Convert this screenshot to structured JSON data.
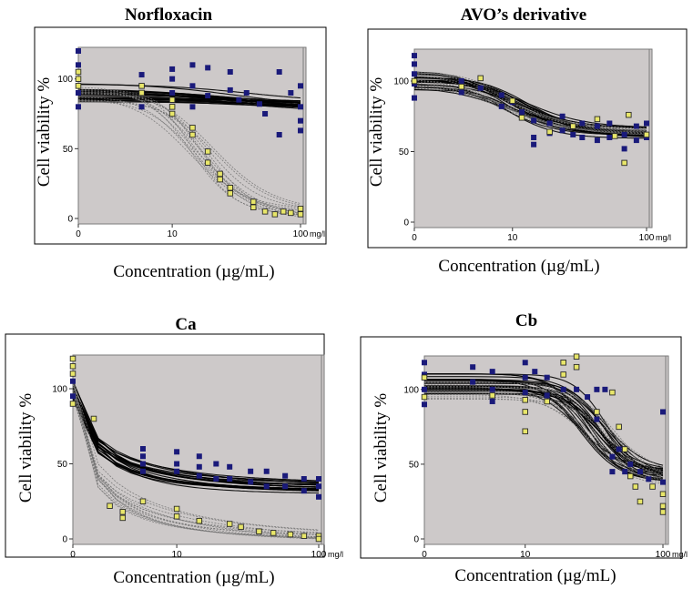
{
  "colors": {
    "plot_bg": "#cdc9c9",
    "frame": "#7a7a7a",
    "blue_marker": "#1a1a7a",
    "yellow_marker": "#e8e66a",
    "yellow_edge": "#2a2a2a",
    "black_curve": "#000000",
    "grey_curve": "#707070"
  },
  "chart_data": [
    {
      "type": "scatter",
      "title": "Norfloxacin",
      "xlabel": "Concentration (µg/mL)",
      "ylabel": "Cell viability  %",
      "x_ticks": [
        "0",
        "10",
        "100"
      ],
      "x_unit": "mg/l",
      "y_ticks": [
        "0",
        "50",
        "100"
      ],
      "xlim": [
        0,
        100
      ],
      "ylim": [
        0,
        120
      ],
      "series": [
        {
          "name": "blue",
          "style": "square",
          "fit_top": 90,
          "fit_bottom": 80,
          "ec50": 40,
          "hill": 1.2,
          "points": [
            [
              0,
              120
            ],
            [
              0,
              110
            ],
            [
              0,
              100
            ],
            [
              0,
              90
            ],
            [
              0,
              80
            ],
            [
              5,
              103
            ],
            [
              5,
              90
            ],
            [
              5,
              80
            ],
            [
              10,
              107
            ],
            [
              10,
              100
            ],
            [
              10,
              90
            ],
            [
              15,
              110
            ],
            [
              15,
              95
            ],
            [
              15,
              80
            ],
            [
              20,
              108
            ],
            [
              20,
              88
            ],
            [
              30,
              105
            ],
            [
              30,
              92
            ],
            [
              35,
              85
            ],
            [
              40,
              90
            ],
            [
              50,
              82
            ],
            [
              55,
              75
            ],
            [
              70,
              105
            ],
            [
              70,
              60
            ],
            [
              85,
              90
            ],
            [
              100,
              95
            ],
            [
              100,
              80
            ],
            [
              100,
              70
            ],
            [
              100,
              63
            ]
          ]
        },
        {
          "name": "yellow",
          "style": "ring",
          "fit_top": 90,
          "fit_bottom": 3,
          "ec50": 20,
          "hill": 2.2,
          "points": [
            [
              0,
              105
            ],
            [
              0,
              100
            ],
            [
              0,
              95
            ],
            [
              5,
              95
            ],
            [
              5,
              90
            ],
            [
              10,
              85
            ],
            [
              10,
              80
            ],
            [
              10,
              75
            ],
            [
              15,
              65
            ],
            [
              15,
              60
            ],
            [
              20,
              48
            ],
            [
              20,
              40
            ],
            [
              25,
              32
            ],
            [
              25,
              28
            ],
            [
              30,
              22
            ],
            [
              30,
              18
            ],
            [
              45,
              12
            ],
            [
              45,
              8
            ],
            [
              55,
              5
            ],
            [
              65,
              3
            ],
            [
              75,
              5
            ],
            [
              85,
              4
            ],
            [
              100,
              7
            ],
            [
              100,
              3
            ]
          ]
        }
      ]
    },
    {
      "type": "scatter",
      "title": "AVO’s derivative",
      "xlabel": "Concentration (µg/mL)",
      "ylabel": "Cell viability  %",
      "x_ticks": [
        "0",
        "10",
        "100"
      ],
      "x_unit": "mg/l",
      "y_ticks": [
        "0",
        "50",
        "100"
      ],
      "xlim": [
        0,
        100
      ],
      "ylim": [
        0,
        120
      ],
      "series": [
        {
          "name": "blue",
          "style": "square",
          "fit_top": 100,
          "fit_bottom": 63,
          "ec50": 12,
          "hill": 2.0,
          "points": [
            [
              0,
              118
            ],
            [
              0,
              112
            ],
            [
              0,
              105
            ],
            [
              0,
              98
            ],
            [
              0,
              88
            ],
            [
              3,
              100
            ],
            [
              3,
              92
            ],
            [
              5,
              95
            ],
            [
              8,
              90
            ],
            [
              8,
              82
            ],
            [
              10,
              85
            ],
            [
              12,
              78
            ],
            [
              15,
              72
            ],
            [
              15,
              60
            ],
            [
              15,
              55
            ],
            [
              20,
              70
            ],
            [
              20,
              63
            ],
            [
              25,
              75
            ],
            [
              25,
              65
            ],
            [
              30,
              62
            ],
            [
              35,
              70
            ],
            [
              35,
              60
            ],
            [
              45,
              68
            ],
            [
              45,
              58
            ],
            [
              55,
              70
            ],
            [
              55,
              60
            ],
            [
              70,
              62
            ],
            [
              70,
              52
            ],
            [
              85,
              68
            ],
            [
              85,
              58
            ],
            [
              100,
              70
            ],
            [
              100,
              60
            ]
          ]
        },
        {
          "name": "yellow",
          "style": "ring",
          "fit_top": 100,
          "fit_bottom": 63,
          "ec50": 10,
          "hill": 1.8,
          "points": [
            [
              0,
              100
            ],
            [
              3,
              96
            ],
            [
              5,
              102
            ],
            [
              10,
              86
            ],
            [
              12,
              74
            ],
            [
              20,
              64
            ],
            [
              30,
              68
            ],
            [
              45,
              73
            ],
            [
              60,
              61
            ],
            [
              75,
              76
            ],
            [
              70,
              42
            ],
            [
              100,
              62
            ]
          ]
        }
      ]
    },
    {
      "type": "scatter",
      "title": "Ca",
      "xlabel": "Concentration (µg/mL)",
      "ylabel": "Cell viability  %",
      "x_ticks": [
        "0",
        "10",
        "100"
      ],
      "x_unit": "mg/l",
      "y_ticks": [
        "0",
        "50",
        "100"
      ],
      "xlim": [
        0,
        100
      ],
      "ylim": [
        0,
        120
      ],
      "series": [
        {
          "name": "blue",
          "style": "square",
          "fit_top": 100,
          "fit_bottom": 34,
          "ec50": 1.0,
          "hill": 0.9,
          "points": [
            [
              0,
              115
            ],
            [
              0,
              105
            ],
            [
              0,
              95
            ],
            [
              5,
              60
            ],
            [
              5,
              55
            ],
            [
              5,
              50
            ],
            [
              5,
              45
            ],
            [
              10,
              58
            ],
            [
              10,
              50
            ],
            [
              10,
              45
            ],
            [
              15,
              55
            ],
            [
              15,
              48
            ],
            [
              15,
              42
            ],
            [
              20,
              50
            ],
            [
              20,
              40
            ],
            [
              25,
              48
            ],
            [
              25,
              40
            ],
            [
              35,
              45
            ],
            [
              35,
              38
            ],
            [
              45,
              45
            ],
            [
              45,
              35
            ],
            [
              60,
              42
            ],
            [
              60,
              35
            ],
            [
              80,
              40
            ],
            [
              80,
              32
            ],
            [
              100,
              40
            ],
            [
              100,
              35
            ],
            [
              100,
              28
            ]
          ]
        },
        {
          "name": "yellow",
          "style": "ring",
          "fit_top": 100,
          "fit_bottom": 0,
          "ec50": 0.8,
          "hill": 0.8,
          "points": [
            [
              0,
              120
            ],
            [
              0,
              115
            ],
            [
              0,
              110
            ],
            [
              0,
              90
            ],
            [
              1,
              80
            ],
            [
              2,
              22
            ],
            [
              3,
              18
            ],
            [
              3,
              14
            ],
            [
              5,
              25
            ],
            [
              10,
              20
            ],
            [
              10,
              15
            ],
            [
              15,
              12
            ],
            [
              25,
              10
            ],
            [
              30,
              8
            ],
            [
              40,
              5
            ],
            [
              50,
              4
            ],
            [
              65,
              3
            ],
            [
              80,
              2
            ],
            [
              100,
              2
            ],
            [
              100,
              0
            ]
          ]
        }
      ]
    },
    {
      "type": "scatter",
      "title": "Cb",
      "xlabel": "Concentration (µg/mL)",
      "ylabel": "Cell viability  %",
      "x_ticks": [
        "0",
        "10",
        "100"
      ],
      "x_unit": "mg/l",
      "y_ticks": [
        "0",
        "50",
        "100"
      ],
      "xlim": [
        0,
        100
      ],
      "ylim": [
        0,
        120
      ],
      "series": [
        {
          "name": "blue",
          "style": "square",
          "fit_top": 104,
          "fit_bottom": 42,
          "ec50": 35,
          "hill": 3.5,
          "points": [
            [
              0,
              118
            ],
            [
              0,
              110
            ],
            [
              0,
              100
            ],
            [
              0,
              90
            ],
            [
              3,
              115
            ],
            [
              3,
              105
            ],
            [
              5,
              112
            ],
            [
              5,
              100
            ],
            [
              5,
              92
            ],
            [
              10,
              118
            ],
            [
              10,
              108
            ],
            [
              10,
              98
            ],
            [
              10,
              85
            ],
            [
              12,
              112
            ],
            [
              15,
              108
            ],
            [
              15,
              96
            ],
            [
              20,
              118
            ],
            [
              20,
              100
            ],
            [
              25,
              115
            ],
            [
              25,
              100
            ],
            [
              30,
              95
            ],
            [
              35,
              100
            ],
            [
              35,
              80
            ],
            [
              40,
              100
            ],
            [
              45,
              55
            ],
            [
              45,
              45
            ],
            [
              50,
              60
            ],
            [
              55,
              45
            ],
            [
              60,
              50
            ],
            [
              70,
              45
            ],
            [
              80,
              40
            ],
            [
              100,
              85
            ],
            [
              100,
              38
            ],
            [
              100,
              30
            ]
          ]
        },
        {
          "name": "yellow",
          "style": "ring",
          "fit_top": 100,
          "fit_bottom": 38,
          "ec50": 40,
          "hill": 3.0,
          "points": [
            [
              0,
              108
            ],
            [
              0,
              95
            ],
            [
              5,
              96
            ],
            [
              10,
              93
            ],
            [
              10,
              85
            ],
            [
              10,
              72
            ],
            [
              15,
              92
            ],
            [
              20,
              118
            ],
            [
              20,
              110
            ],
            [
              25,
              122
            ],
            [
              25,
              115
            ],
            [
              35,
              85
            ],
            [
              45,
              98
            ],
            [
              50,
              75
            ],
            [
              55,
              60
            ],
            [
              60,
              42
            ],
            [
              65,
              35
            ],
            [
              70,
              25
            ],
            [
              85,
              35
            ],
            [
              100,
              30
            ],
            [
              100,
              22
            ],
            [
              100,
              18
            ]
          ]
        }
      ]
    }
  ]
}
